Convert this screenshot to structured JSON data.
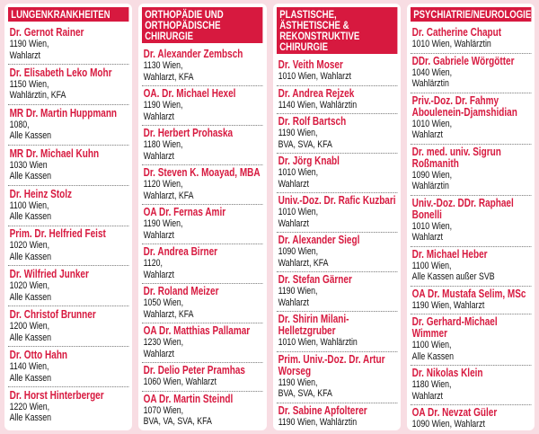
{
  "columns": [
    {
      "title": "LUNGENKRANKHEITEN",
      "entries": [
        {
          "name": "Dr. Gernot Rainer",
          "lines": [
            "1190 Wien,",
            "Wahlarzt"
          ]
        },
        {
          "name": "Dr. Elisabeth Leko Mohr",
          "lines": [
            "1150 Wien,",
            "Wahlärztin, KFA"
          ]
        },
        {
          "name": "MR Dr. Martin Huppmann",
          "lines": [
            "1080,",
            "Alle Kassen"
          ]
        },
        {
          "name": "MR Dr. Michael Kuhn",
          "lines": [
            "1030 Wien",
            "Alle Kassen"
          ]
        },
        {
          "name": "Dr. Heinz Stolz",
          "lines": [
            "1100 Wien,",
            "Alle Kassen"
          ]
        },
        {
          "name": "Prim. Dr. Helfried Feist",
          "lines": [
            "1020 Wien,",
            "Alle Kassen"
          ]
        },
        {
          "name": "Dr. Wilfried Junker",
          "lines": [
            "1020 Wien,",
            "Alle Kassen"
          ]
        },
        {
          "name": "Dr. Christof Brunner",
          "lines": [
            "1200 Wien,",
            "Alle Kassen"
          ]
        },
        {
          "name": "Dr. Otto Hahn",
          "lines": [
            "1140 Wien,",
            "Alle Kassen"
          ]
        },
        {
          "name": "Dr. Horst Hinterberger",
          "lines": [
            "1220 Wien,",
            "Alle Kassen"
          ]
        }
      ]
    },
    {
      "title": "ORTHOPÄDIE UND ORTHOPÄDISCHE CHIRURGIE",
      "entries": [
        {
          "name": "Dr. Alexander Zembsch",
          "lines": [
            "1130 Wien,",
            "Wahlarzt, KFA"
          ]
        },
        {
          "name": "OA. Dr. Michael Hexel",
          "lines": [
            "1190 Wien,",
            "Wahlarzt"
          ]
        },
        {
          "name": "Dr. Herbert Prohaska",
          "lines": [
            "1180 Wien,",
            "Wahlarzt"
          ]
        },
        {
          "name": "Dr. Steven K. Moayad, MBA",
          "lines": [
            "1120 Wien,",
            "Wahlarzt, KFA"
          ]
        },
        {
          "name": "OA Dr. Fernas Amir",
          "lines": [
            "1190 Wien,",
            "Wahlarzt"
          ]
        },
        {
          "name": "Dr. Andrea Birner",
          "lines": [
            "1120,",
            "Wahlarzt"
          ]
        },
        {
          "name": "Dr. Roland Meizer",
          "lines": [
            "1050 Wien,",
            "Wahlarzt, KFA"
          ]
        },
        {
          "name": "OA Dr. Matthias Pallamar",
          "lines": [
            "1230 Wien,",
            "Wahlarzt"
          ]
        },
        {
          "name": "Dr. Delio Peter Pramhas",
          "lines": [
            "1060 Wien, Wahlarzt"
          ]
        },
        {
          "name": "OA Dr. Martin Steindl",
          "lines": [
            "1070 Wien,",
            "BVA, VA, SVA, KFA"
          ]
        }
      ]
    },
    {
      "title": "PLASTISCHE, ÄSTHETISCHE & REKONSTRUKTIVE CHIRURGIE",
      "entries": [
        {
          "name": "Dr. Veith Moser",
          "lines": [
            "1010 Wien, Wahlarzt"
          ]
        },
        {
          "name": "Dr. Andrea Rejzek",
          "lines": [
            "1140 Wien, Wahlärztin"
          ]
        },
        {
          "name": "Dr. Rolf Bartsch",
          "lines": [
            "1190 Wien,",
            "BVA, SVA, KFA"
          ]
        },
        {
          "name": "Dr. Jörg Knabl",
          "lines": [
            "1010 Wien,",
            "Wahlarzt"
          ]
        },
        {
          "name": "Univ.-Doz. Dr. Rafic Kuzbari",
          "lines": [
            "1010 Wien,",
            "Wahlarzt"
          ]
        },
        {
          "name": "Dr. Alexander Siegl",
          "lines": [
            "1090 Wien,",
            "Wahlarzt, KFA"
          ]
        },
        {
          "name": "Dr. Stefan Gärner",
          "lines": [
            "1190 Wien,",
            "Wahlarzt"
          ]
        },
        {
          "name": "Dr. Shirin Milani-Helletzgruber",
          "lines": [
            "1010 Wien, Wahlärztin"
          ]
        },
        {
          "name": "Prim. Univ.-Doz. Dr. Artur Worseg",
          "lines": [
            "1190 Wien,",
            "BVA, SVA, KFA"
          ]
        },
        {
          "name": "Dr. Sabine Apfolterer",
          "lines": [
            "1190 Wien, Wahlärztin"
          ]
        }
      ]
    },
    {
      "title": "PSYCHIATRIE/NEUROLOGIE",
      "entries": [
        {
          "name": "Dr. Catherine Chaput",
          "lines": [
            "1010 Wien, Wahlärztin"
          ]
        },
        {
          "name": "DDr. Gabriele Wörgötter",
          "lines": [
            "1040 Wien,",
            "Wahlärztin"
          ]
        },
        {
          "name": "Priv.-Doz. Dr. Fahmy Aboulenein-Djamshidian",
          "lines": [
            "1010 Wien,",
            "Wahlarzt"
          ]
        },
        {
          "name": "Dr. med. univ. Sigrun Roßmanith",
          "lines": [
            "1090 Wien,",
            "Wahlärztin"
          ]
        },
        {
          "name": "Univ.-Doz. DDr. Raphael Bonelli",
          "lines": [
            "1010 Wien,",
            "Wahlarzt"
          ]
        },
        {
          "name": "Dr. Michael Heber",
          "lines": [
            "1100 Wien,",
            "Alle Kassen außer SVB"
          ]
        },
        {
          "name": "OA Dr. Mustafa Selim, MSc",
          "lines": [
            "1190 Wien, Wahlarzt"
          ]
        },
        {
          "name": "Dr. Gerhard-Michael Wimmer",
          "lines": [
            "1100 Wien,",
            "Alle Kassen"
          ]
        },
        {
          "name": "Dr. Nikolas Klein",
          "lines": [
            "1180 Wien,",
            "Wahlarzt"
          ]
        },
        {
          "name": "OA Dr. Nevzat Güler",
          "lines": [
            "1090 Wien, Wahlarzt"
          ]
        }
      ]
    }
  ]
}
